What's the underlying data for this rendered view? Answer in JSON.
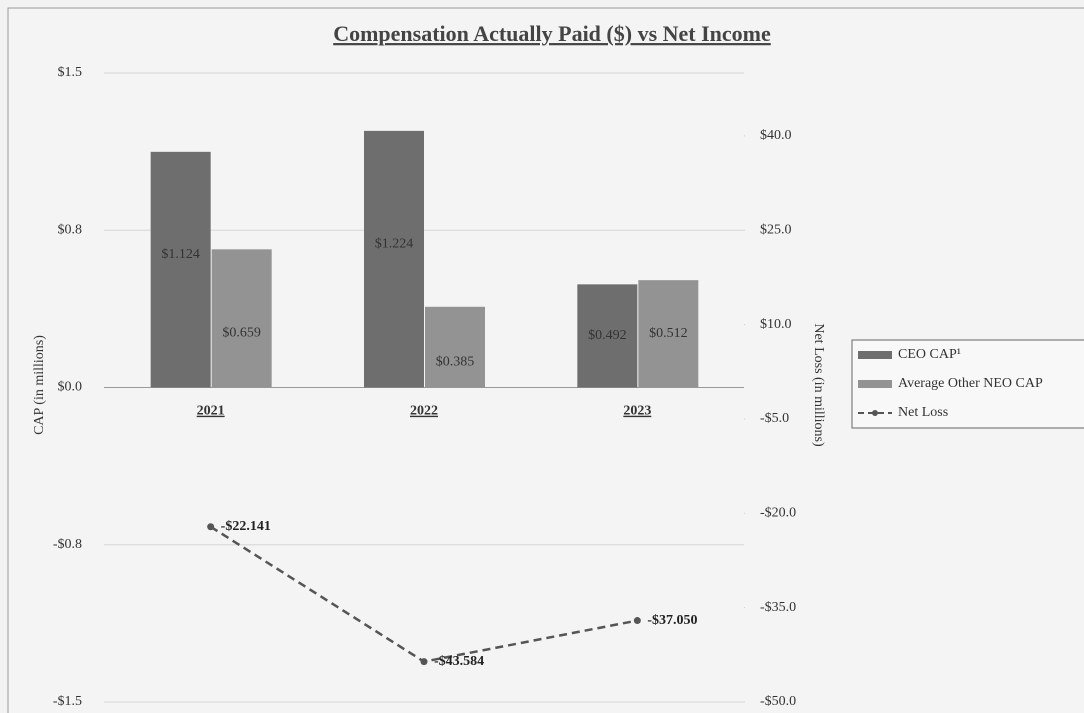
{
  "chart_data": {
    "type": "bar",
    "title": "Compensation Actually Paid ($) vs Net Income",
    "y_label": "CAP (in millions)",
    "y2_label": "Net Loss (in millions)",
    "categories": [
      "2021",
      "2022",
      "2023"
    ],
    "series": [
      {
        "name": "CEO CAP¹",
        "type": "bar",
        "color": "#6e6e6e",
        "values": [
          1.124,
          1.224,
          0.492
        ],
        "value_labels": [
          "$1.124",
          "$1.224",
          "$0.492"
        ]
      },
      {
        "name": "Average Other NEO CAP",
        "type": "bar",
        "color": "#939393",
        "values": [
          0.659,
          0.385,
          0.512
        ],
        "value_labels": [
          "$0.659",
          "$0.385",
          "$0.512"
        ]
      },
      {
        "name": "Net Loss",
        "type": "line",
        "axis": "y2",
        "color": "#555555",
        "values": [
          -22.141,
          -43.584,
          -37.05
        ],
        "value_labels": [
          "-$22.141",
          "-$43.584",
          "-$37.050"
        ]
      }
    ],
    "ylim": [
      -1.5,
      1.5
    ],
    "yticks": [
      {
        "value": 1.5,
        "label": "$1.5"
      },
      {
        "value": 0.75,
        "label": "$0.8"
      },
      {
        "value": 0,
        "label": "$0.0"
      },
      {
        "value": -0.75,
        "label": "-$0.8"
      },
      {
        "value": -1.5,
        "label": "-$1.5"
      }
    ],
    "y2lim": [
      -50,
      50
    ],
    "y2ticks": [
      {
        "value": 40,
        "label": "$40.0"
      },
      {
        "value": 25,
        "label": "$25.0"
      },
      {
        "value": 10,
        "label": "$10.0"
      },
      {
        "value": -5,
        "label": "-$5.0"
      },
      {
        "value": -20,
        "label": "-$20.0"
      },
      {
        "value": -35,
        "label": "-$35.0"
      },
      {
        "value": -50,
        "label": "-$50.0"
      }
    ],
    "grid": true,
    "legend": "right"
  }
}
